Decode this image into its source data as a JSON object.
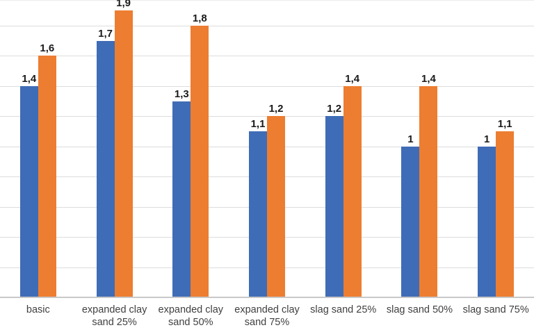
{
  "chart_data": {
    "type": "bar",
    "title": "",
    "xlabel": "",
    "ylabel": "",
    "categories": [
      "basic",
      "expanded clay sand 25%",
      "expanded clay sand 50%",
      "expanded clay sand 75%",
      "slag sand 25%",
      "slag sand 50%",
      "slag sand 75%"
    ],
    "series": [
      {
        "name": "series-blue",
        "color": "#3f6cb6",
        "values": [
          1.4,
          1.7,
          1.3,
          1.1,
          1.2,
          1.0,
          1.0
        ],
        "value_labels": [
          "1,4",
          "1,7",
          "1,3",
          "1,1",
          "1,2",
          "1",
          "1"
        ]
      },
      {
        "name": "series-orange",
        "color": "#ed7d31",
        "values": [
          1.6,
          1.9,
          1.8,
          1.2,
          1.4,
          1.4,
          1.1
        ],
        "value_labels": [
          "1,6",
          "1,9",
          "1,8",
          "1,2",
          "1,4",
          "1,4",
          "1,1"
        ]
      }
    ],
    "ylim": [
      0,
      1.97
    ],
    "gridline_step": 0.2,
    "grid": true,
    "legend": "none",
    "decimal_separator": ",",
    "colors": {
      "gridline": "#dcdcdc",
      "axis_line": "#c9c9c9",
      "data_label": "#1a1a1a",
      "category_label": "#3f3f3f"
    }
  }
}
